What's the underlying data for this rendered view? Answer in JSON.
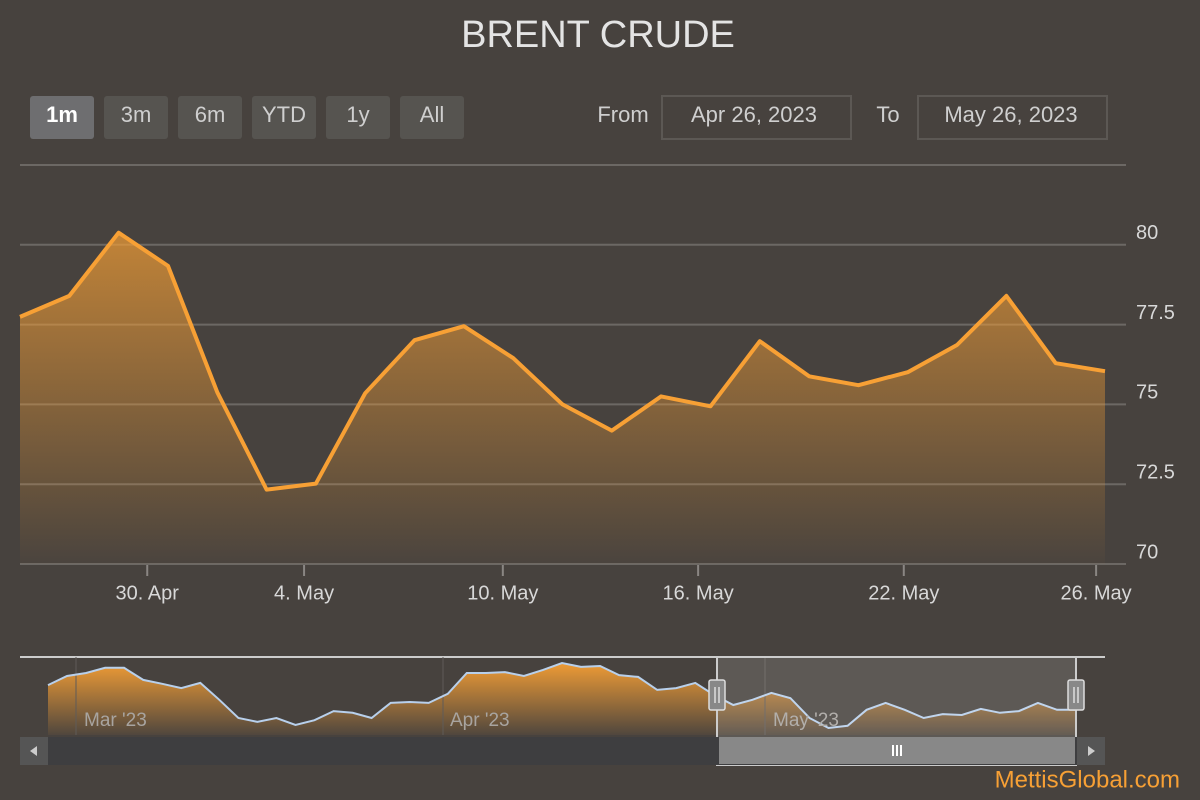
{
  "chart_data": {
    "type": "area",
    "title": "BRENT CRUDE",
    "color": "#f7a035",
    "values": [
      77.74,
      78.4,
      80.38,
      79.34,
      75.38,
      72.33,
      72.52,
      75.35,
      77.01,
      77.45,
      76.45,
      75.0,
      74.18,
      75.25,
      74.94,
      76.98,
      75.88,
      75.6,
      76.01,
      76.86,
      78.4,
      76.29,
      76.04
    ],
    "ylim": [
      70,
      82.5
    ],
    "yticks": [
      70,
      {
        "value": 72.5,
        "label": "72.5"
      },
      75,
      {
        "value": 77.5,
        "label": "77.5"
      },
      80
    ],
    "xticks": [
      {
        "value": 2.58,
        "label": "30. Apr"
      },
      {
        "value": 5.76,
        "label": "4. May"
      },
      {
        "value": 9.79,
        "label": "10. May"
      },
      {
        "value": 13.75,
        "label": "16. May"
      },
      {
        "value": 17.92,
        "label": "22. May"
      },
      {
        "value": 21.82,
        "label": "26. May"
      }
    ],
    "grid": true
  },
  "range_selector": {
    "buttons": [
      "1m",
      "3m",
      "6m",
      "YTD",
      "1y",
      "All"
    ],
    "from_label": "From",
    "from": "Apr 26, 2023",
    "to_label": "To",
    "to": "May 26, 2023"
  },
  "navigator": {
    "color": "#b8d0ec",
    "labels": [
      "Mar '23",
      "Apr '23",
      "May '23"
    ],
    "values": [
      81.9,
      84.0,
      84.7,
      85.9,
      85.9,
      83.1,
      82.2,
      81.2,
      82.4,
      78.5,
      74.3,
      73.4,
      74.3,
      72.7,
      73.8,
      75.9,
      75.5,
      74.3,
      77.8,
      78.0,
      77.8,
      79.9,
      84.7,
      84.7,
      84.9,
      84.0,
      85.4,
      87.0,
      86.1,
      86.3,
      84.2,
      83.8,
      80.8,
      81.2,
      82.4,
      79.6,
      77.3,
      78.5,
      80.1,
      78.9,
      74.3,
      72.0,
      72.5,
      76.2,
      77.8,
      76.2,
      74.3,
      75.2,
      75.0,
      76.4,
      75.5,
      75.9,
      77.8,
      76.2,
      76.2
    ]
  },
  "credit": "MettisGlobal.com"
}
